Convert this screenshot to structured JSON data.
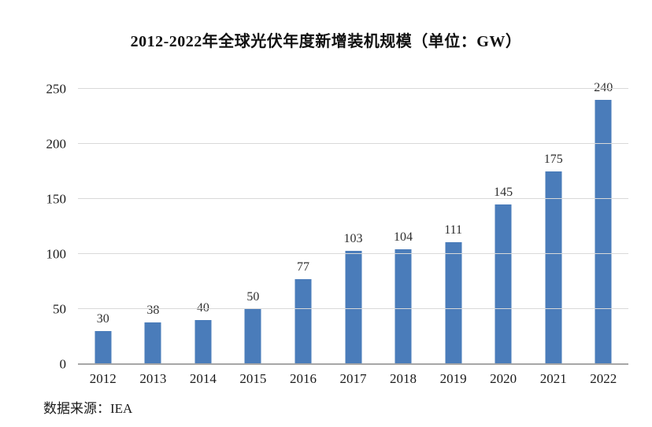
{
  "chart_data": {
    "type": "bar",
    "title": "2012-2022年全球光伏年度新增装机规模（单位：GW）",
    "categories": [
      "2012",
      "2013",
      "2014",
      "2015",
      "2016",
      "2017",
      "2018",
      "2019",
      "2020",
      "2021",
      "2022"
    ],
    "values": [
      30,
      38,
      40,
      50,
      77,
      103,
      104,
      111,
      145,
      175,
      240
    ],
    "xlabel": "",
    "ylabel": "",
    "ylim": [
      0,
      250
    ],
    "yticks": [
      0,
      50,
      100,
      150,
      200,
      250
    ],
    "grid": true,
    "legend": "none",
    "data_labels": true,
    "source_note": "数据来源：IEA",
    "colors": {
      "bar": "#4a7cba",
      "gridline": "#d9d9d9",
      "axis_line": "#a6a6a6",
      "title_text": "#111111",
      "label_text": "#2e2e2e"
    }
  }
}
